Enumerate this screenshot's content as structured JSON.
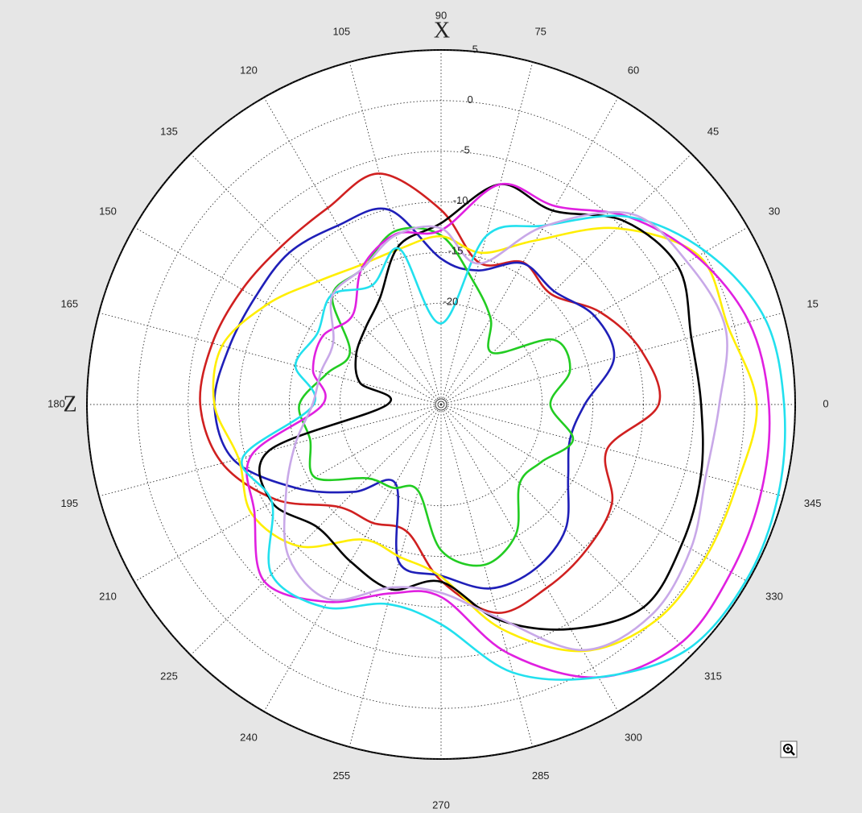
{
  "chart_data": {
    "type": "line",
    "coordinate_system": "polar",
    "title": "",
    "axis_labels": {
      "x_axis": "X",
      "z_axis": "Z"
    },
    "angular_ticks_deg": [
      0,
      15,
      30,
      45,
      60,
      75,
      90,
      105,
      120,
      135,
      150,
      165,
      180,
      195,
      210,
      225,
      240,
      255,
      270,
      285,
      300,
      315,
      330,
      345
    ],
    "angular_tick_labels": [
      "0",
      "15",
      "30",
      "45",
      "60",
      "75",
      "90",
      "105",
      "120",
      "135",
      "150",
      "165",
      "180",
      "195",
      "210",
      "225",
      "240",
      "255",
      "270",
      "285",
      "300",
      "315",
      "330",
      "345"
    ],
    "radial_range_db": [
      -30,
      5
    ],
    "radial_ticks": [
      5,
      0,
      -5,
      -10,
      -15,
      -20
    ],
    "radial_tick_labels": [
      "5",
      "0",
      "-5",
      "-10",
      "-15",
      "-20"
    ],
    "grid": true,
    "legend": "none",
    "series": [
      {
        "color": "#d02020",
        "angles": [
          0,
          15,
          30,
          45,
          60,
          75,
          90,
          105,
          120,
          135,
          150,
          165,
          180,
          195,
          210,
          225,
          240,
          255,
          270,
          285,
          300,
          315,
          330,
          345
        ],
        "values": [
          -8.5,
          -9.5,
          -11.8,
          -14.6,
          -13.8,
          -15.5,
          -10.8,
          -6.4,
          -7.6,
          -7.8,
          -7.3,
          -6.6,
          -6.2,
          -7.6,
          -11.2,
          -15.7,
          -16.5,
          -17,
          -12.6,
          -8.7,
          -9.1,
          -9.7,
          -10.5,
          -13
        ]
      },
      {
        "color": "#1f1fb8",
        "angles": [
          0,
          15,
          30,
          45,
          60,
          75,
          90,
          105,
          120,
          135,
          150,
          165,
          180,
          195,
          210,
          225,
          240,
          255,
          270,
          285,
          300,
          315,
          330,
          345
        ],
        "values": [
          -15.8,
          -12.3,
          -12.5,
          -14.2,
          -13.9,
          -16.3,
          -15.6,
          -10.1,
          -9.6,
          -8.8,
          -8.8,
          -8.3,
          -7.6,
          -8.8,
          -13.5,
          -17.8,
          -21,
          -13.9,
          -13.1,
          -11.2,
          -11.3,
          -12.6,
          -15.5,
          -16.8
        ]
      },
      {
        "color": "#22cc22",
        "angles": [
          0,
          15,
          30,
          45,
          60,
          75,
          90,
          105,
          120,
          135,
          150,
          165,
          180,
          195,
          210,
          225,
          240,
          255,
          270,
          285,
          300,
          315,
          330,
          345
        ],
        "values": [
          -19.2,
          -16.8,
          -17.2,
          -22.8,
          -20.2,
          -17.5,
          -13.3,
          -12.3,
          -14.5,
          -14.8,
          -19.6,
          -18.3,
          -16,
          -16.6,
          -15.6,
          -19.7,
          -20.5,
          -21.2,
          -15.6,
          -13.6,
          -15.2,
          -19,
          -18.6,
          -16.5
        ]
      },
      {
        "color": "#ffee00",
        "angles": [
          0,
          15,
          30,
          45,
          60,
          75,
          90,
          105,
          120,
          135,
          150,
          165,
          180,
          195,
          210,
          225,
          240,
          255,
          270,
          285,
          300,
          315,
          330,
          345
        ],
        "values": [
          1.2,
          -0.6,
          -0.6,
          -5.4,
          -11.3,
          -14.5,
          -13.4,
          -14.1,
          -14.1,
          -12.8,
          -10.2,
          -7.6,
          -7.6,
          -9.3,
          -8.4,
          -10.2,
          -14.6,
          -14.4,
          -13,
          -7.1,
          -1.9,
          0.1,
          0.2,
          0.3
        ]
      },
      {
        "color": "#000000",
        "angles": [
          0,
          15,
          30,
          45,
          60,
          75,
          90,
          105,
          120,
          135,
          150,
          165,
          180,
          195,
          210,
          225,
          240,
          255,
          270,
          285,
          300,
          315,
          330,
          345
        ],
        "values": [
          -4.3,
          -4.4,
          -2.9,
          -4.4,
          -7.9,
          -7.5,
          -12.1,
          -13.8,
          -17.9,
          -19.4,
          -20.3,
          -21.7,
          -24.7,
          -12.4,
          -10.7,
          -12.8,
          -12.1,
          -11.1,
          -12.5,
          -8,
          -4.4,
          -1.7,
          -2.5,
          -3.4
        ]
      },
      {
        "color": "#e020e0",
        "angles": [
          0,
          15,
          30,
          45,
          60,
          75,
          90,
          105,
          120,
          135,
          150,
          165,
          180,
          195,
          210,
          225,
          240,
          255,
          270,
          285,
          300,
          315,
          330,
          345
        ],
        "values": [
          2.4,
          1.5,
          -0.8,
          -3.8,
          -7.4,
          -7.5,
          -12.8,
          -12.6,
          -14.4,
          -17.6,
          -16.5,
          -16.9,
          -18.3,
          -10.6,
          -8.7,
          -5.3,
          -7.5,
          -10.7,
          -11,
          -4.6,
          1.1,
          3.4,
          3.1,
          2.8
        ]
      },
      {
        "color": "#22e0ee",
        "angles": [
          0,
          15,
          30,
          45,
          60,
          75,
          90,
          105,
          120,
          135,
          150,
          165,
          180,
          195,
          210,
          225,
          240,
          255,
          270,
          285,
          300,
          315,
          330,
          345
        ],
        "values": [
          3.9,
          3.1,
          0.2,
          -3.8,
          -9.6,
          -12.8,
          -22,
          -14.1,
          -16.4,
          -14.7,
          -15.9,
          -15.1,
          -17.4,
          -9.7,
          -10.7,
          -6.3,
          -6.9,
          -9.6,
          -8.3,
          -2.6,
          1.1,
          4.3,
          4.8,
          4.5
        ]
      },
      {
        "color": "#c8a8e8",
        "angles": [
          0,
          15,
          30,
          45,
          60,
          75,
          90,
          105,
          120,
          135,
          150,
          165,
          180,
          195,
          210,
          225,
          240,
          255,
          270,
          285,
          300,
          315,
          330,
          345
        ],
        "values": [
          -2.5,
          -0.9,
          -1.9,
          -3.4,
          -9.7,
          -15.6,
          -12.6,
          -12.7,
          -14.5,
          -14.8,
          -17.7,
          -17.7,
          -17.3,
          -15.1,
          -12.3,
          -8.7,
          -7.8,
          -11.3,
          -11.4,
          -8.2,
          -2,
          -0.6,
          -1.5,
          -2.9
        ]
      }
    ]
  }
}
